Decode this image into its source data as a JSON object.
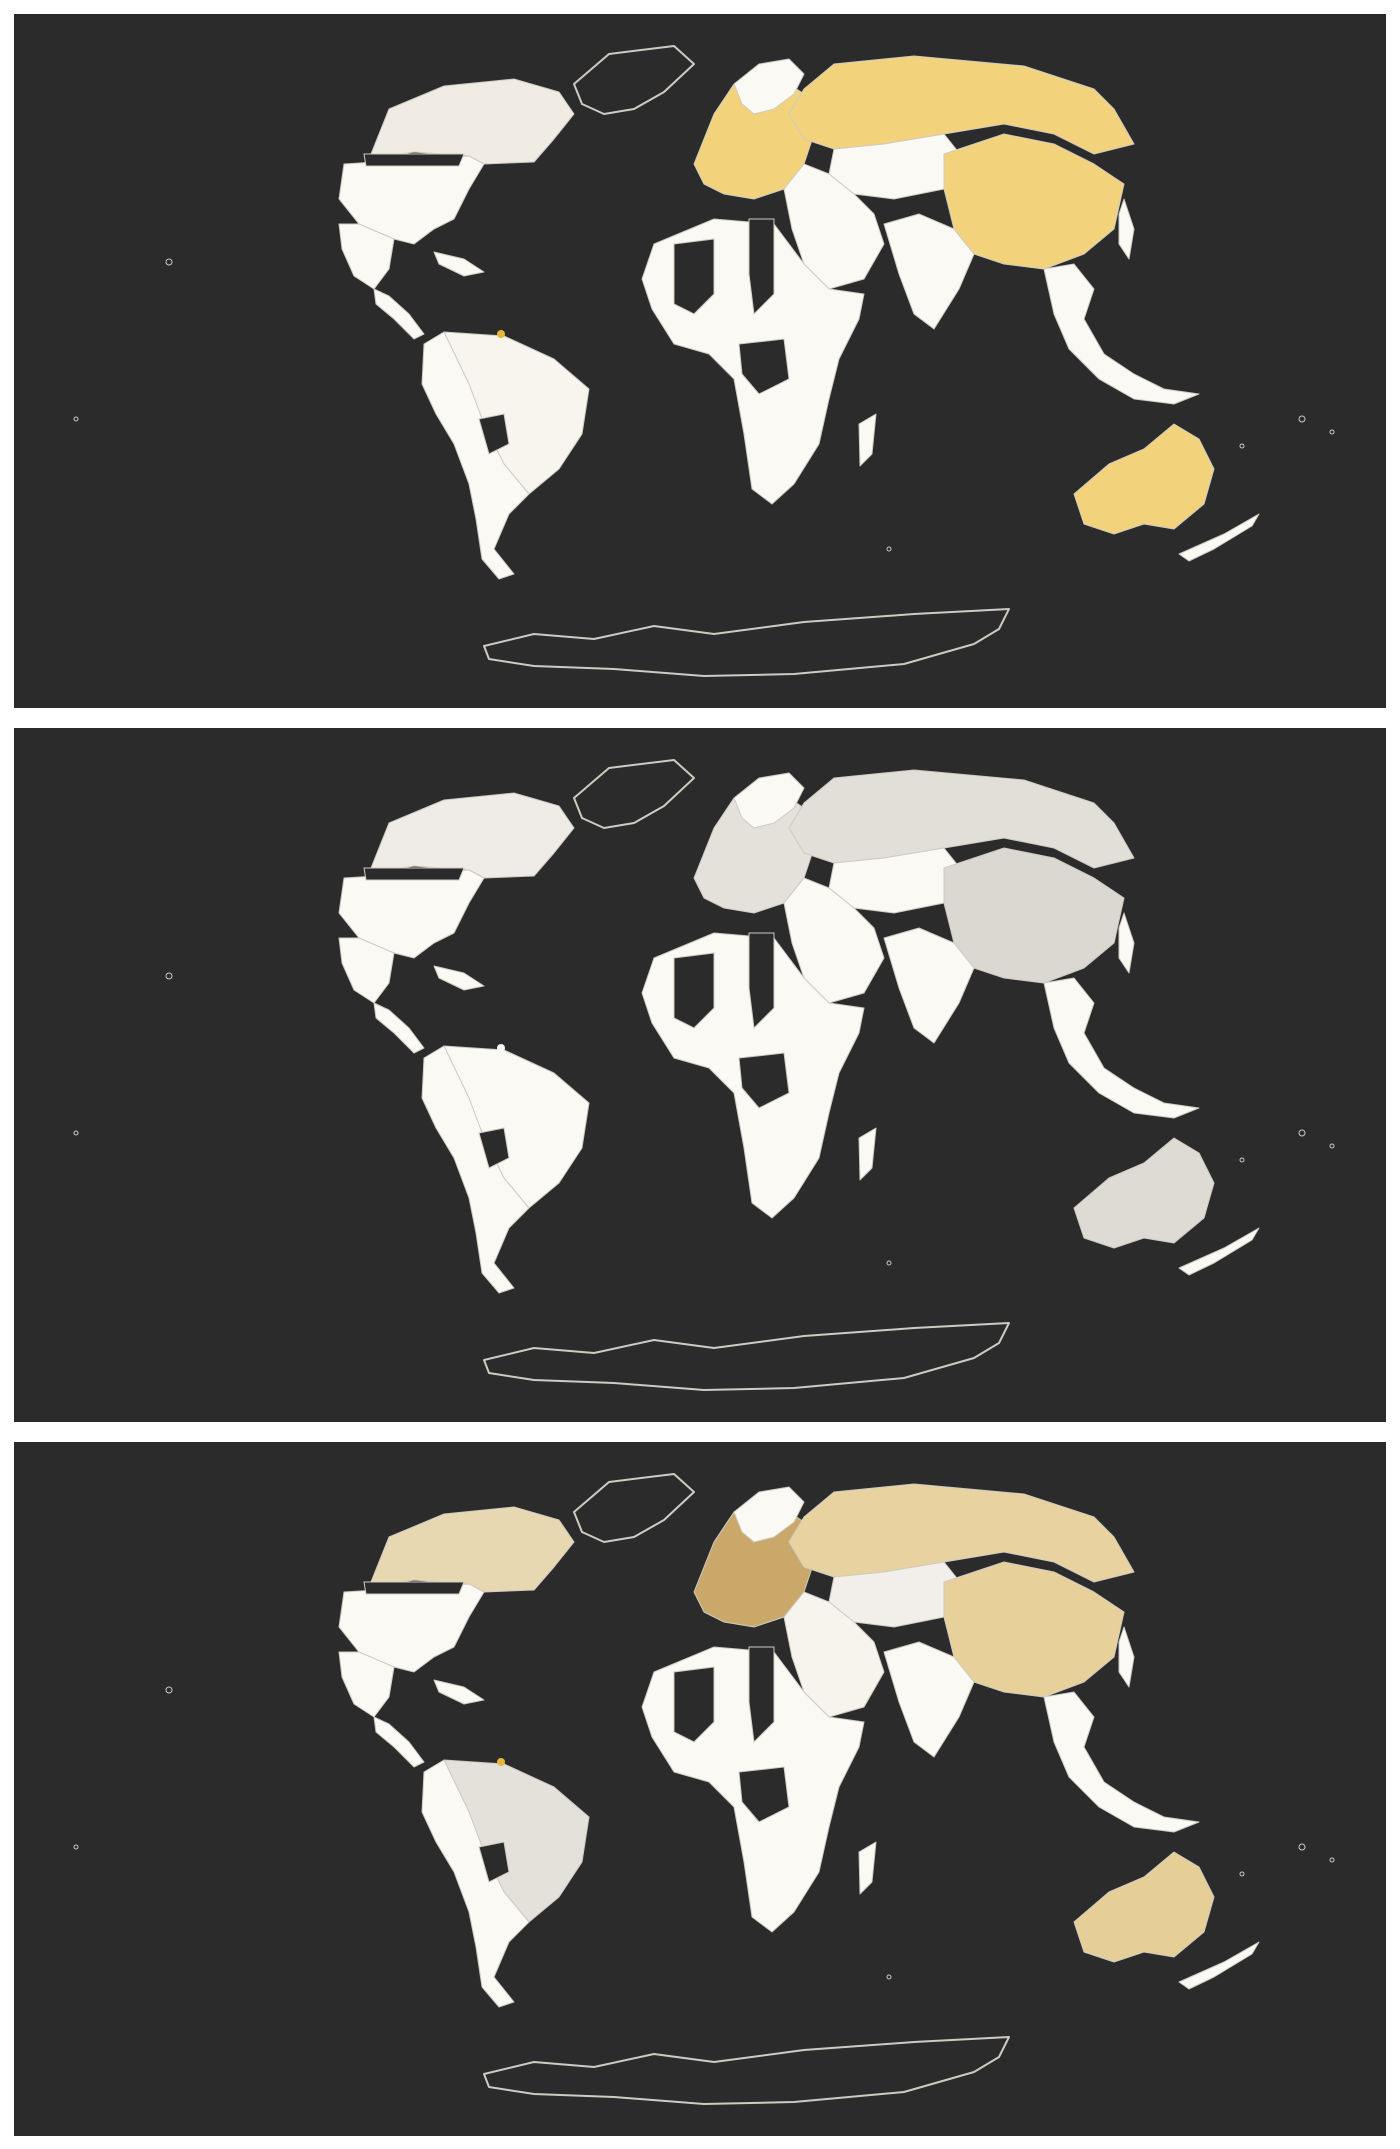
{
  "colors": {
    "background": "#2b2b2b",
    "outline": "#cfcac2",
    "base_fill": "#fbf9f3",
    "no_data": "#2b2b2b"
  },
  "maps": [
    {
      "id": "map-1",
      "highlight_color": "#f3d27c",
      "fills": {
        "north_america_canada": "#f1ece3",
        "south_america_brazil": "#f8f5ee",
        "europe": "#f3d27c",
        "russia": "#f3d27c",
        "china": "#f3d27c",
        "australia": "#f3d27c",
        "central_asia": "#fbf9f3",
        "middle_east": "#fbf9f3",
        "south_asia": "#fbf9f3",
        "southeast_asia": "#fbf9f3",
        "africa": "#fbf9f3",
        "guiana_dot": "#e8b43a"
      }
    },
    {
      "id": "map-2",
      "highlight_color": "#dedad4",
      "fills": {
        "north_america_canada": "#efece7",
        "south_america_brazil": "#fbf9f3",
        "europe": "#e4e0da",
        "russia": "#e2ded8",
        "china": "#dbd7d1",
        "australia": "#dedad4",
        "central_asia": "#fbf9f3",
        "middle_east": "#fbf9f3",
        "south_asia": "#fbf9f3",
        "southeast_asia": "#fbf9f3",
        "africa": "#fbf9f3",
        "guiana_dot": "#fbf9f3"
      }
    },
    {
      "id": "map-3",
      "highlight_color": "#e6cf96",
      "fills": {
        "north_america_canada": "#e8d8b2",
        "south_america_brazil": "#e4e0da",
        "europe": "#c9a869",
        "russia": "#e8d3a0",
        "china": "#e8d09a",
        "australia": "#e6cf96",
        "central_asia": "#f2efea",
        "middle_east": "#f7f4ee",
        "south_asia": "#fbf9f3",
        "southeast_asia": "#fbf9f3",
        "africa": "#fbf9f3",
        "guiana_dot": "#e8b43a"
      }
    }
  ]
}
